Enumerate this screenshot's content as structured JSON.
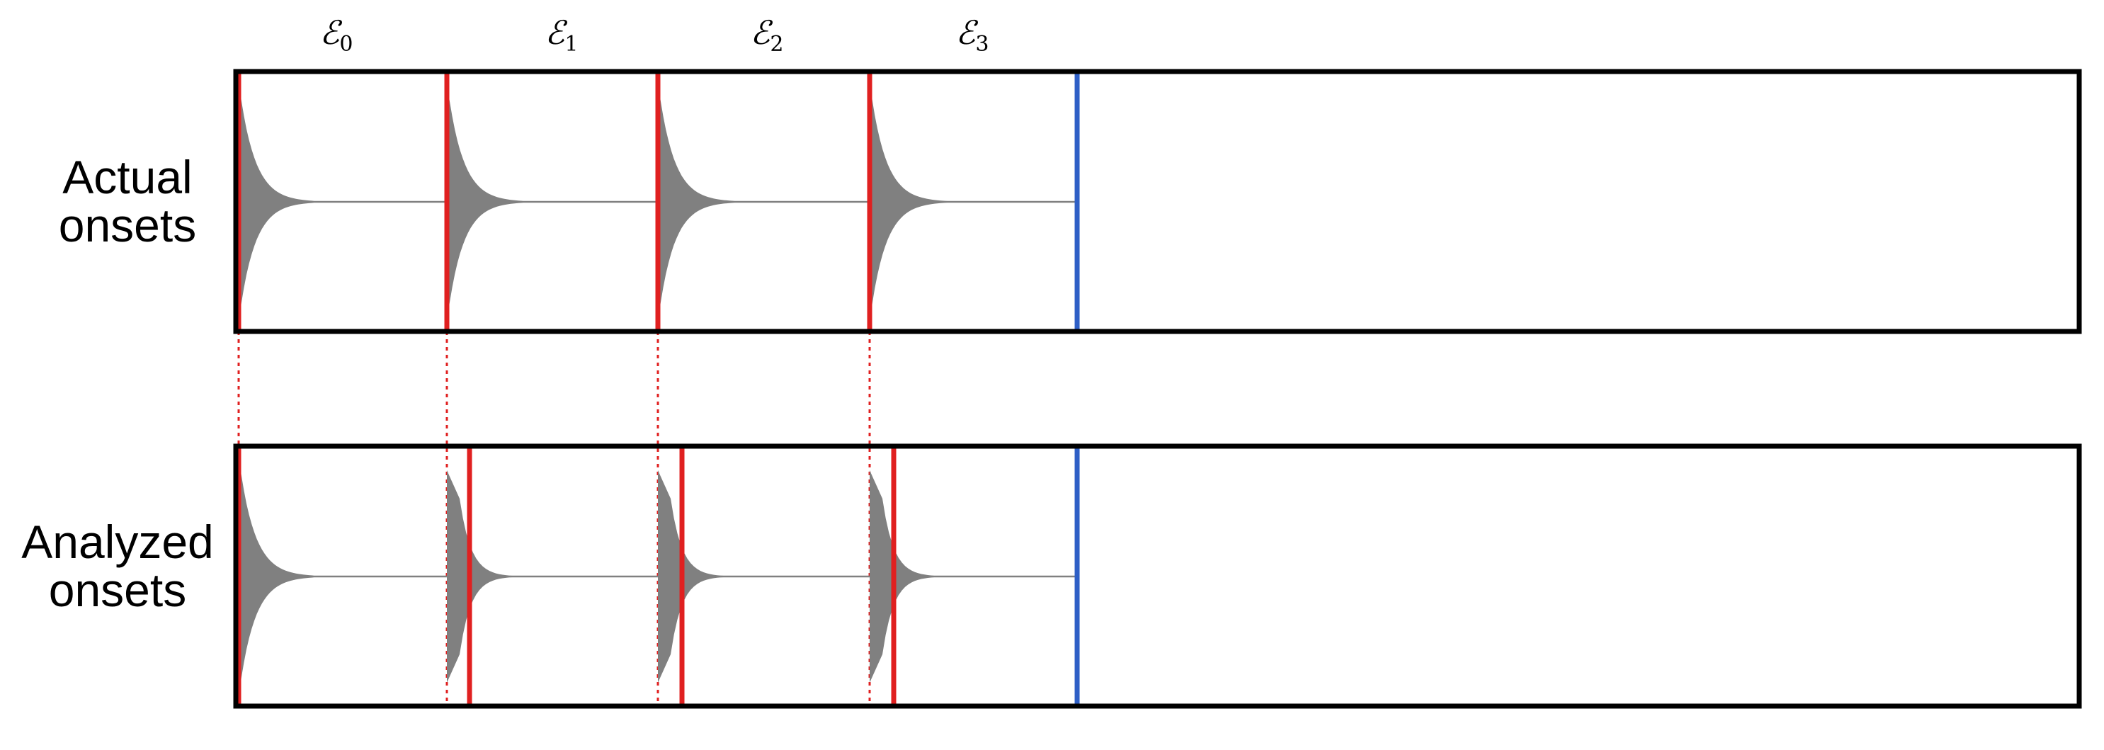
{
  "rows": [
    {
      "id": "actual",
      "label_lines": [
        "Actual",
        "onsets"
      ]
    },
    {
      "id": "analyzed",
      "label_lines": [
        "Analyzed",
        "onsets"
      ]
    }
  ],
  "segments": [
    {
      "symbol": "ℰ",
      "subscript": "0"
    },
    {
      "symbol": "ℰ",
      "subscript": "1"
    },
    {
      "symbol": "ℰ",
      "subscript": "2"
    },
    {
      "symbol": "ℰ",
      "subscript": "3"
    }
  ],
  "colors": {
    "onset_marker": "#e02020",
    "end_marker": "#2e5fc6",
    "waveform": "#808080",
    "frame": "#000000",
    "guide": "#e02020"
  }
}
